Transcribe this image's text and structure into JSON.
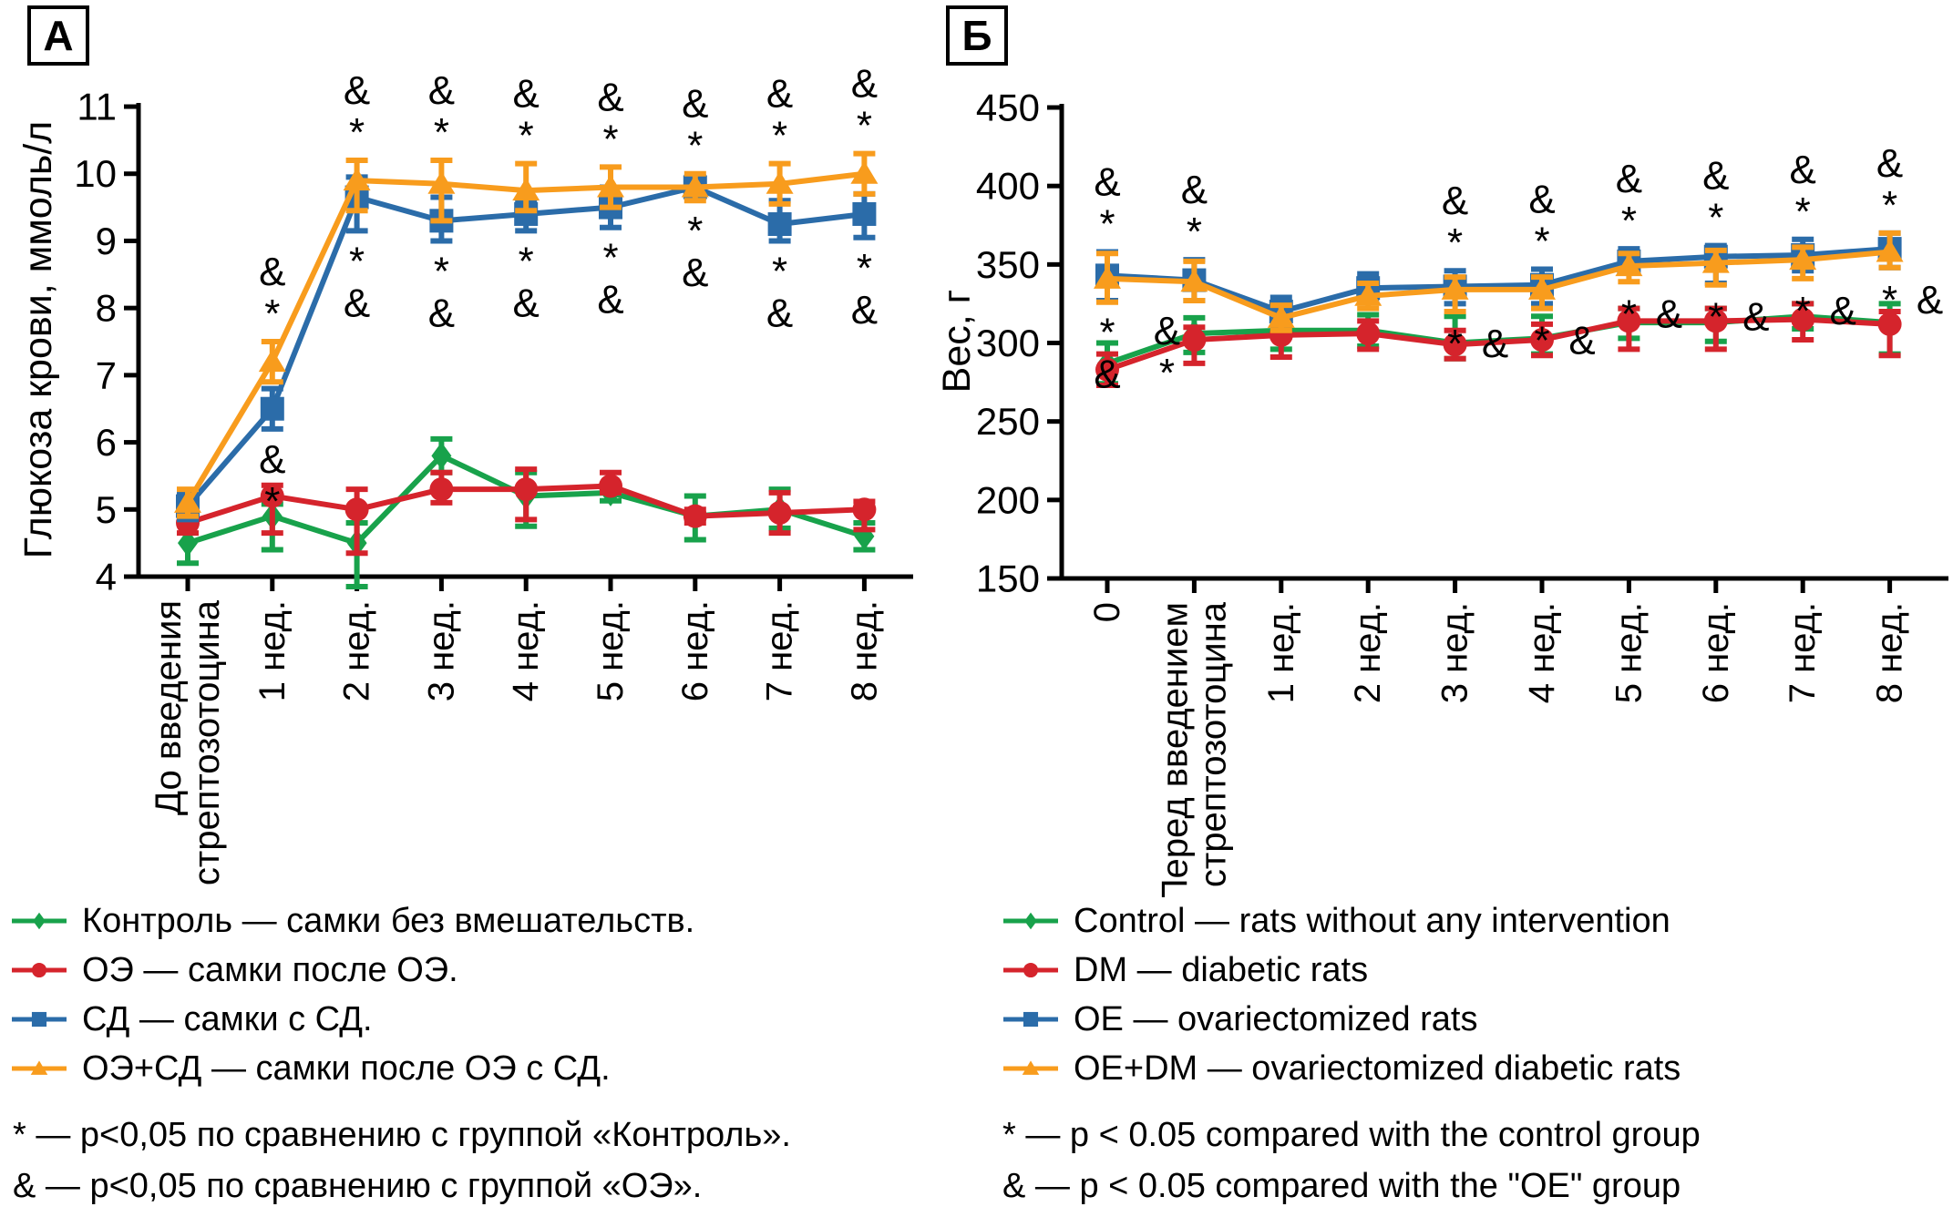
{
  "chart_data": [
    {
      "type": "line",
      "panel_label": "А",
      "title": "",
      "xlabel": "",
      "ylabel": "Глюкоза крови, ммоль/л",
      "ylim": [
        4,
        11
      ],
      "ytick_step": 1,
      "yticks": [
        4,
        5,
        6,
        7,
        8,
        9,
        10,
        11
      ],
      "grid": false,
      "legend_position": "below-figure",
      "categories": [
        "До введения стрептозотоцина",
        "1 нед.",
        "2 нед.",
        "3 нед.",
        "4 нед.",
        "5 нед.",
        "6 нед.",
        "7 нед.",
        "8 нед."
      ],
      "categories_lines": [
        [
          "До введения",
          "стрептозотоцина"
        ],
        [
          "1 нед."
        ],
        [
          "2 нед."
        ],
        [
          "3 нед."
        ],
        [
          "4 нед."
        ],
        [
          "5 нед."
        ],
        [
          "6 нед."
        ],
        [
          "7 нед."
        ],
        [
          "8 нед."
        ]
      ],
      "series": [
        {
          "name": "Контроль",
          "color": "#18A24B",
          "marker": "diamond",
          "values": [
            4.5,
            4.9,
            4.5,
            5.8,
            5.2,
            5.25,
            4.9,
            5.0,
            4.6
          ],
          "err_lo": [
            0.3,
            0.5,
            0.65,
            0.25,
            0.45,
            0.12,
            0.35,
            0.28,
            0.2
          ],
          "err_hi": [
            0.3,
            0.18,
            0.3,
            0.25,
            0.35,
            0.12,
            0.3,
            0.3,
            0.2
          ]
        },
        {
          "name": "ОЭ",
          "color": "#D5242C",
          "marker": "circle",
          "values": [
            4.8,
            5.2,
            5.0,
            5.3,
            5.3,
            5.35,
            4.9,
            4.95,
            5.0
          ],
          "err_lo": [
            0.15,
            0.55,
            0.65,
            0.2,
            0.45,
            0.1,
            0.1,
            0.3,
            0.3
          ],
          "err_hi": [
            0.15,
            0.16,
            0.3,
            0.25,
            0.3,
            0.2,
            0.1,
            0.3,
            0.12
          ]
        },
        {
          "name": "СД",
          "color": "#2B6CA9",
          "marker": "square",
          "values": [
            5.05,
            6.5,
            9.65,
            9.3,
            9.4,
            9.5,
            9.8,
            9.25,
            9.4
          ],
          "err_lo": [
            0.2,
            0.3,
            0.5,
            0.3,
            0.25,
            0.3,
            0.15,
            0.25,
            0.35
          ],
          "err_hi": [
            0.2,
            0.3,
            0.3,
            0.35,
            0.2,
            0.3,
            0.15,
            0.35,
            0.3
          ]
        },
        {
          "name": "ОЭ+СД",
          "color": "#F89C1D",
          "marker": "triangle",
          "values": [
            5.1,
            7.2,
            9.9,
            9.85,
            9.75,
            9.8,
            9.8,
            9.85,
            10.0
          ],
          "err_lo": [
            0.2,
            0.3,
            0.45,
            0.55,
            0.3,
            0.3,
            0.2,
            0.3,
            0.3
          ],
          "err_hi": [
            0.2,
            0.3,
            0.3,
            0.35,
            0.4,
            0.3,
            0.2,
            0.3,
            0.3
          ]
        }
      ],
      "annotations": [
        {
          "i": 1,
          "above": [
            "&",
            "*"
          ],
          "below": [
            "&",
            "*"
          ],
          "below_mode": "stack",
          "dx": 0
        },
        {
          "i": 2,
          "above": [
            "&",
            "*"
          ],
          "below": [
            "*",
            "&"
          ],
          "below_mode": "stack",
          "dx": 0
        },
        {
          "i": 3,
          "above": [
            "&",
            "*"
          ],
          "below": [
            "*",
            "&"
          ],
          "below_mode": "stack",
          "dx": 0
        },
        {
          "i": 4,
          "above": [
            "&",
            "*"
          ],
          "below": [
            "*",
            "&"
          ],
          "below_mode": "stack",
          "dx": 0
        },
        {
          "i": 5,
          "above": [
            "&",
            "*"
          ],
          "below": [
            "*",
            "&"
          ],
          "below_mode": "stack",
          "dx": 0
        },
        {
          "i": 6,
          "above": [
            "&",
            "*"
          ],
          "below": [
            "*",
            "&"
          ],
          "below_mode": "stack",
          "dx": 0
        },
        {
          "i": 7,
          "above": [
            "&",
            "*"
          ],
          "below": [
            "*",
            "&"
          ],
          "below_mode": "stack",
          "dx": 0
        },
        {
          "i": 8,
          "above": [
            "&",
            "*"
          ],
          "below": [
            "*",
            "&"
          ],
          "below_mode": "stack",
          "dx": 0
        }
      ]
    },
    {
      "type": "line",
      "panel_label": "Б",
      "title": "",
      "xlabel": "",
      "ylabel": "Вес, г",
      "ylim": [
        150,
        450
      ],
      "ytick_step": 50,
      "yticks": [
        150,
        200,
        250,
        300,
        350,
        400,
        450
      ],
      "grid": false,
      "legend_position": "below-figure",
      "categories": [
        "0",
        "Перед введением стрептозотоцина",
        "1 нед.",
        "2 нед.",
        "3 нед.",
        "4 нед.",
        "5 нед.",
        "6 нед.",
        "7 нед.",
        "8 нед."
      ],
      "categories_lines": [
        [
          "0"
        ],
        [
          "Перед введением",
          "стрептозотоцина"
        ],
        [
          "1 нед."
        ],
        [
          "2 нед."
        ],
        [
          "3 нед."
        ],
        [
          "4 нед."
        ],
        [
          "5 нед."
        ],
        [
          "6 нед."
        ],
        [
          "7 нед."
        ],
        [
          "8 нед."
        ]
      ],
      "series": [
        {
          "name": "Control",
          "color": "#18A24B",
          "marker": "diamond",
          "values": [
            287,
            306,
            308,
            308,
            300,
            303,
            313,
            313,
            317,
            313
          ],
          "err_lo": [
            13,
            12,
            12,
            10,
            10,
            10,
            10,
            12,
            8,
            20
          ],
          "err_hi": [
            13,
            10,
            12,
            10,
            17,
            14,
            9,
            9,
            8,
            12
          ]
        },
        {
          "name": "DM",
          "color": "#D5242C",
          "marker": "circle",
          "values": [
            283,
            302,
            305,
            306,
            299,
            302,
            314,
            314,
            315,
            312
          ],
          "err_lo": [
            10,
            15,
            14,
            10,
            9,
            10,
            18,
            18,
            13,
            20
          ],
          "err_hi": [
            10,
            8,
            10,
            8,
            9,
            10,
            8,
            8,
            10,
            8
          ]
        },
        {
          "name": "OE",
          "color": "#2B6CA9",
          "marker": "square",
          "values": [
            343,
            340,
            320,
            335,
            336,
            337,
            352,
            355,
            356,
            360
          ],
          "err_lo": [
            16,
            13,
            10,
            8,
            11,
            12,
            7,
            17,
            10,
            12
          ],
          "err_hi": [
            15,
            13,
            9,
            9,
            10,
            10,
            8,
            7,
            10,
            10
          ]
        },
        {
          "name": "OE+DM",
          "color": "#F89C1D",
          "marker": "triangle",
          "values": [
            341,
            339,
            316,
            330,
            334,
            334,
            349,
            351,
            353,
            358
          ],
          "err_lo": [
            15,
            12,
            8,
            8,
            14,
            12,
            10,
            14,
            12,
            10
          ],
          "err_hi": [
            16,
            13,
            8,
            8,
            8,
            8,
            8,
            8,
            8,
            12
          ]
        }
      ],
      "annotations": [
        {
          "i": 0,
          "above": [
            "&",
            "*"
          ],
          "below": [
            "*",
            "&"
          ],
          "below_mode": "stack",
          "dx": 0
        },
        {
          "i": 1,
          "above": [
            "&",
            "*"
          ],
          "below": [
            "&",
            "*"
          ],
          "below_mode": "stack",
          "dx": -30
        },
        {
          "i": 4,
          "above": [
            "&",
            "*"
          ],
          "below": [
            "*",
            "&"
          ],
          "below_mode": "row",
          "dx": 0
        },
        {
          "i": 5,
          "above": [
            "&",
            "*"
          ],
          "below": [
            "*",
            "&"
          ],
          "below_mode": "row",
          "dx": 0
        },
        {
          "i": 6,
          "above": [
            "&",
            "*"
          ],
          "below": [
            "*",
            "&"
          ],
          "below_mode": "row",
          "dx": 0
        },
        {
          "i": 7,
          "above": [
            "&",
            "*"
          ],
          "below": [
            "*",
            "&"
          ],
          "below_mode": "row",
          "dx": 0
        },
        {
          "i": 8,
          "above": [
            "&",
            "*"
          ],
          "below": [
            "*",
            "&"
          ],
          "below_mode": "row",
          "dx": 0
        },
        {
          "i": 9,
          "above": [
            "&",
            "*"
          ],
          "below": [
            "*",
            "&"
          ],
          "below_mode": "row",
          "dx": 0
        }
      ]
    }
  ],
  "legends": {
    "left": {
      "items": [
        {
          "label": "Контроль — самки без вмешательств."
        },
        {
          "label": "ОЭ — самки после ОЭ."
        },
        {
          "label": "СД — самки с СД."
        },
        {
          "label": "ОЭ+СД — самки после ОЭ с СД."
        }
      ],
      "notes": [
        "* — p<0,05 по сравнению с группой «Контроль».",
        "& — p<0,05 по сравнению с группой «ОЭ»."
      ]
    },
    "right": {
      "items": [
        {
          "label": "Control — rats without any intervention"
        },
        {
          "label": "DM — diabetic rats"
        },
        {
          "label": "OE — ovariectomized rats"
        },
        {
          "label": "OE+DM — ovariectomized diabetic rats"
        }
      ],
      "notes": [
        "* — p < 0.05 compared with the control group",
        "& — p < 0.05 compared with the \"OE\" group"
      ]
    }
  },
  "colors": {
    "control_green": "#18A24B",
    "oe_red": "#D5242C",
    "sd_blue": "#2B6CA9",
    "oe_sd_orange": "#F89C1D",
    "axis_black": "#000000"
  }
}
